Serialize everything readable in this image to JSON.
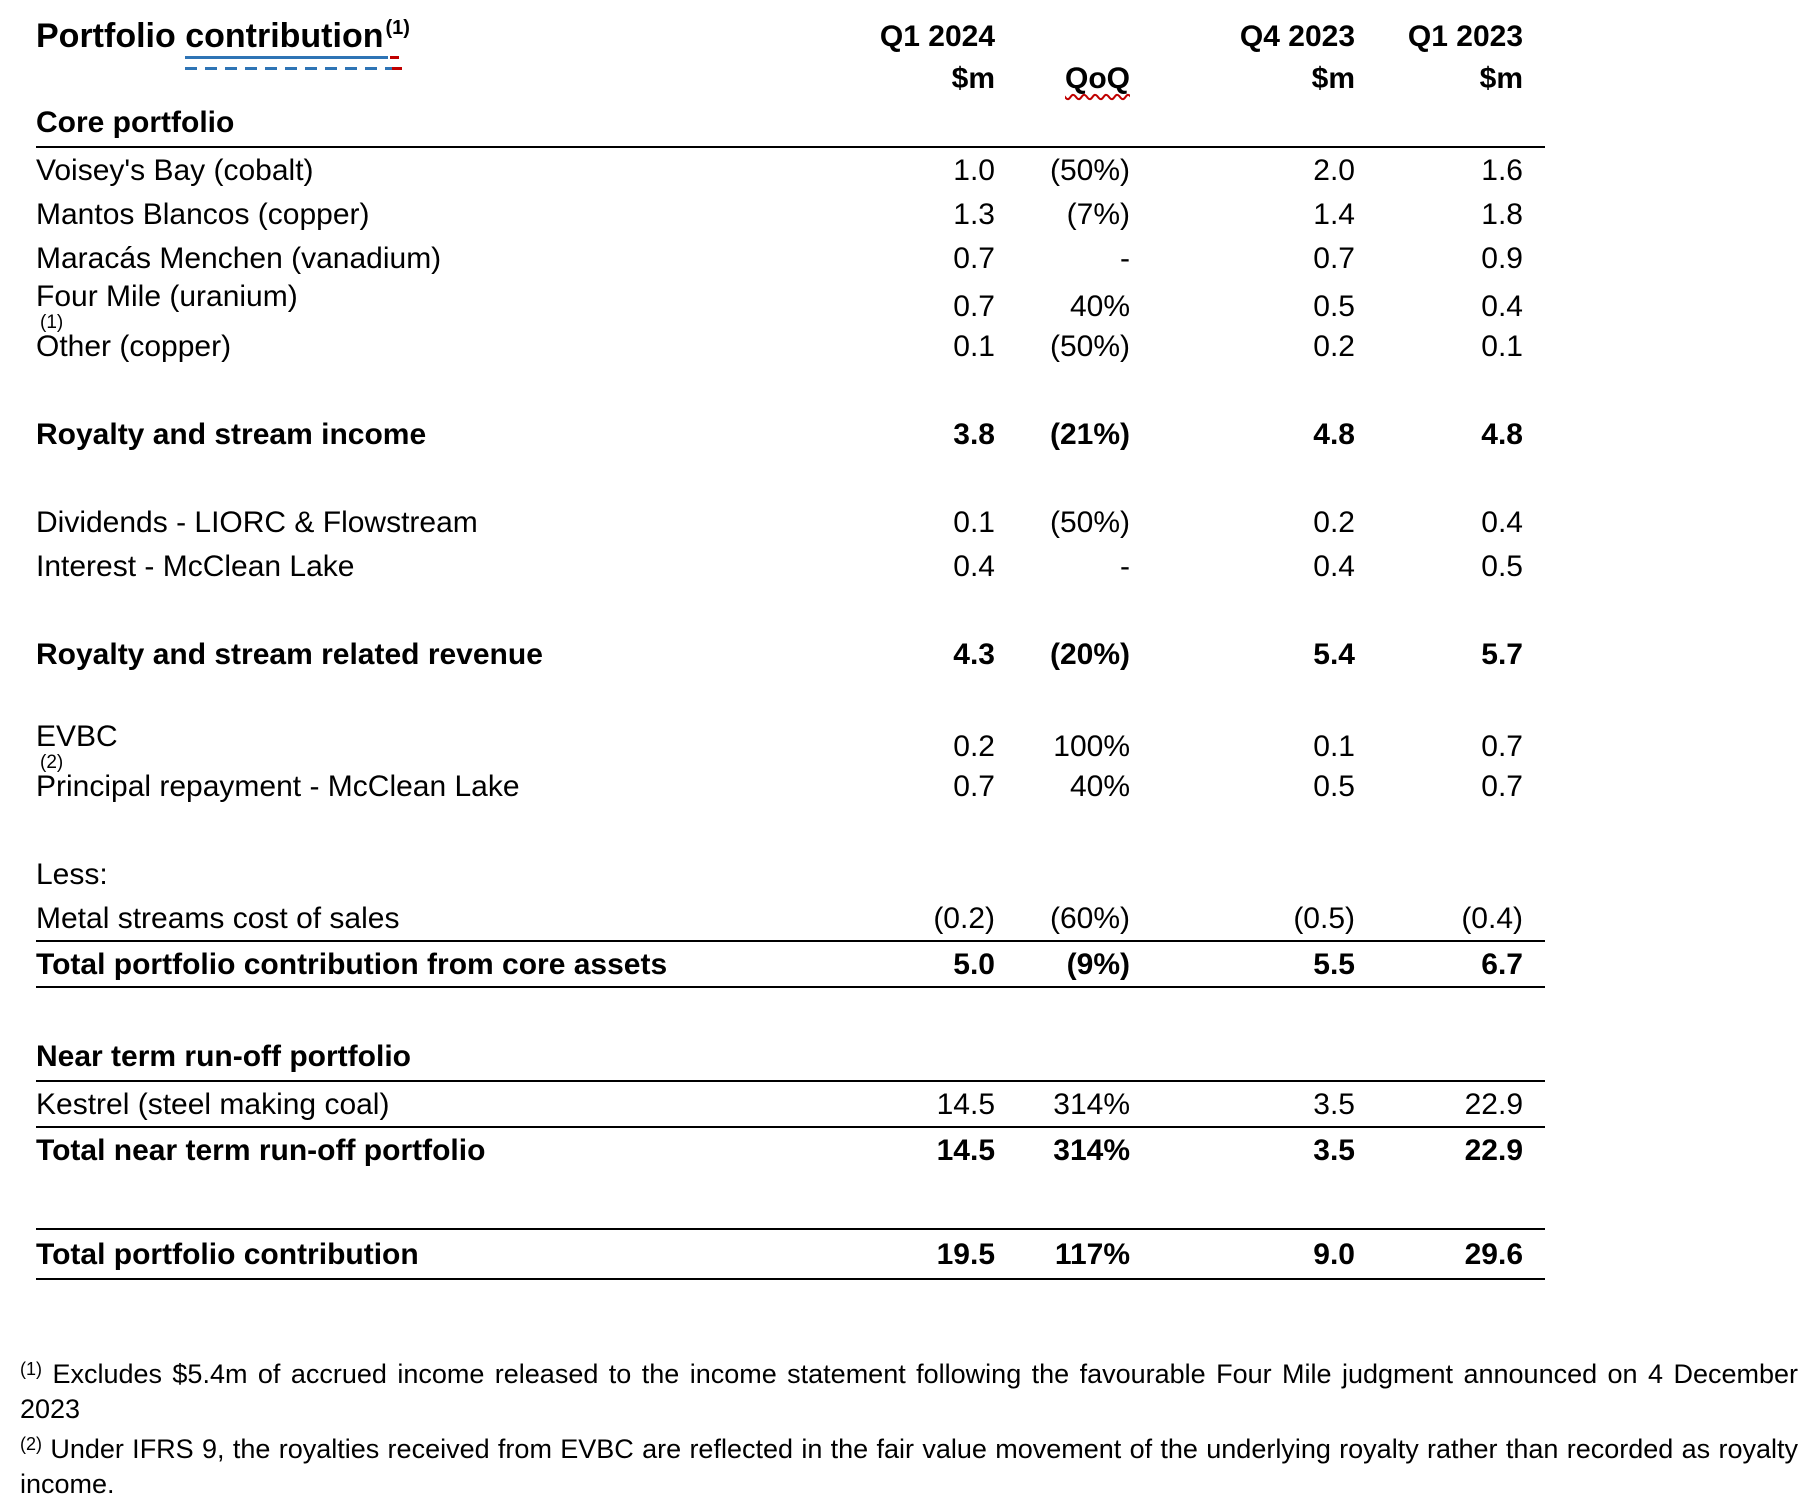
{
  "title": {
    "prefix": "Portfolio ",
    "underlined_word": "contribution",
    "superscript": "(1)"
  },
  "columns": {
    "q1_2024": {
      "line1": "Q1 2024",
      "line2": "$m"
    },
    "qoq": {
      "line1": "",
      "line2": "QoQ"
    },
    "q4_2023": {
      "line1": "Q4 2023",
      "line2": "$m"
    },
    "q1_2023": {
      "line1": "Q1 2023",
      "line2": "$m"
    }
  },
  "colors": {
    "band": "#DBDBDB",
    "rule": "#000000",
    "underline_blue": "#2E74B5",
    "spellcheck_red": "#C00000"
  },
  "table": {
    "rows": [
      {
        "type": "section",
        "label": "Core portfolio",
        "rule_below": true
      },
      {
        "type": "data",
        "label": "Voisey's Bay (cobalt)",
        "q1": "1.0",
        "qoq": "(50%)",
        "q4": "2.0",
        "q1p": "1.6"
      },
      {
        "type": "data",
        "label": "Mantos Blancos (copper)",
        "q1": "1.3",
        "qoq": "(7%)",
        "q4": "1.4",
        "q1p": "1.8"
      },
      {
        "type": "data",
        "label": "Maracás Menchen (vanadium)",
        "q1": "0.7",
        "qoq": "-",
        "q4": "0.7",
        "q1p": "0.9"
      },
      {
        "type": "data",
        "label": "Four Mile (uranium)",
        "sup": "(1)",
        "q1": "0.7",
        "qoq": "40%",
        "q4": "0.5",
        "q1p": "0.4"
      },
      {
        "type": "data",
        "label": "Other (copper)",
        "q1": "0.1",
        "qoq": "(50%)",
        "q4": "0.2",
        "q1p": "0.1"
      },
      {
        "type": "blank"
      },
      {
        "type": "bold",
        "label": "Royalty and stream income",
        "q1": "3.8",
        "qoq": "(21%)",
        "q4": "4.8",
        "q1p": "4.8"
      },
      {
        "type": "blank"
      },
      {
        "type": "data",
        "label": "Dividends - LIORC & Flowstream",
        "q1": "0.1",
        "qoq": "(50%)",
        "q4": "0.2",
        "q1p": "0.4"
      },
      {
        "type": "data",
        "label": "Interest - McClean Lake",
        "q1": "0.4",
        "qoq": "-",
        "q4": "0.4",
        "q1p": "0.5"
      },
      {
        "type": "blank"
      },
      {
        "type": "bold",
        "label": "Royalty and stream related revenue",
        "q1": "4.3",
        "qoq": "(20%)",
        "q4": "5.4",
        "q1p": "5.7"
      },
      {
        "type": "blank"
      },
      {
        "type": "data",
        "label": "EVBC",
        "sup": "(2)",
        "q1": "0.2",
        "qoq": "100%",
        "q4": "0.1",
        "q1p": "0.7"
      },
      {
        "type": "data",
        "label": "Principal repayment - McClean Lake",
        "q1": "0.7",
        "qoq": "40%",
        "q4": "0.5",
        "q1p": "0.7"
      },
      {
        "type": "blank"
      },
      {
        "type": "data",
        "label": "Less:"
      },
      {
        "type": "data",
        "label": "Metal streams cost of sales",
        "q1": "(0.2)",
        "qoq": "(60%)",
        "q4": "(0.5)",
        "q1p": "(0.4)",
        "rule_below": true
      },
      {
        "type": "bold",
        "label": "Total portfolio contribution from core assets",
        "q1": "5.0",
        "qoq": "(9%)",
        "q4": "5.5",
        "q1p": "6.7",
        "rule_below": true
      },
      {
        "type": "blank"
      },
      {
        "type": "section",
        "label": "Near term run-off portfolio",
        "rule_below": true
      },
      {
        "type": "data",
        "label": "Kestrel (steel making coal)",
        "q1": "14.5",
        "qoq": "314%",
        "q4": "3.5",
        "q1p": "22.9",
        "rule_below": true
      },
      {
        "type": "bold",
        "label": "Total near term run-off portfolio",
        "q1": "14.5",
        "qoq": "314%",
        "q4": "3.5",
        "q1p": "22.9"
      },
      {
        "type": "blank",
        "tall": true
      },
      {
        "type": "bold",
        "label": "Total portfolio contribution",
        "q1": "19.5",
        "qoq": "117%",
        "q4": "9.0",
        "q1p": "29.6",
        "rule_above": true,
        "rule_below": true,
        "final": true
      }
    ]
  },
  "footnotes": [
    {
      "marker": "(1)",
      "text": "Excludes $5.4m of accrued income released to the income statement following the favourable Four Mile judgment announced on 4 December 2023"
    },
    {
      "marker": "(2)",
      "text": "Under IFRS 9, the royalties received from EVBC are reflected in the fair value movement of the underlying royalty rather than recorded as royalty income."
    }
  ]
}
